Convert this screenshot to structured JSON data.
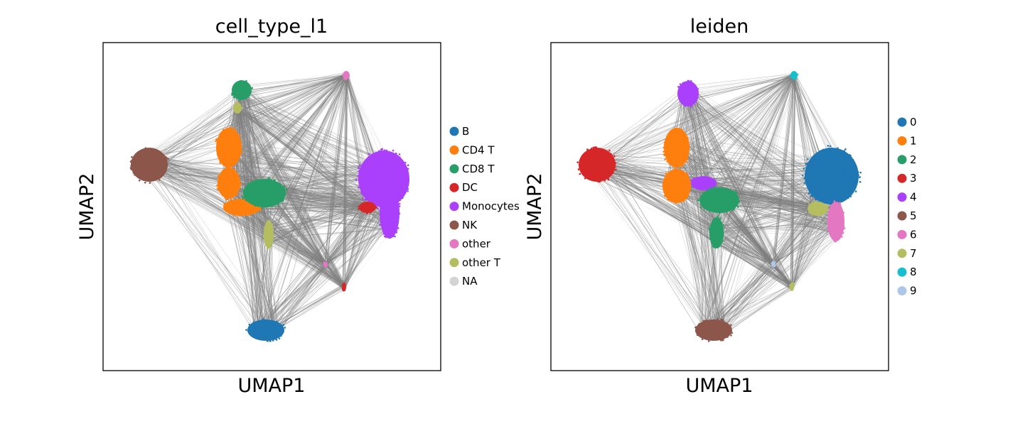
{
  "chart_data": [
    {
      "type": "scatter",
      "title": "cell_type_l1",
      "xlabel": "UMAP1",
      "ylabel": "UMAP2",
      "grid": false,
      "ticks": false,
      "legend_placement": "right",
      "series": [
        {
          "name": "B",
          "color": "#1f77b4"
        },
        {
          "name": "CD4 T",
          "color": "#ff7f0e"
        },
        {
          "name": "CD8 T",
          "color": "#279e68"
        },
        {
          "name": "DC",
          "color": "#d62728"
        },
        {
          "name": "Monocytes",
          "color": "#aa40fc"
        },
        {
          "name": "NK",
          "color": "#8c564b"
        },
        {
          "name": "other",
          "color": "#e377c2"
        },
        {
          "name": "other T",
          "color": "#b5bd61"
        },
        {
          "name": "NA",
          "color": "#d3d3d3"
        }
      ]
    },
    {
      "type": "scatter",
      "title": "leiden",
      "xlabel": "UMAP1",
      "ylabel": "UMAP2",
      "grid": false,
      "ticks": false,
      "legend_placement": "right",
      "series": [
        {
          "name": "0",
          "color": "#1f77b4"
        },
        {
          "name": "1",
          "color": "#ff7f0e"
        },
        {
          "name": "2",
          "color": "#279e68"
        },
        {
          "name": "3",
          "color": "#d62728"
        },
        {
          "name": "4",
          "color": "#aa40fc"
        },
        {
          "name": "5",
          "color": "#8c564b"
        },
        {
          "name": "6",
          "color": "#e377c2"
        },
        {
          "name": "7",
          "color": "#b5bd61"
        },
        {
          "name": "8",
          "color": "#17becf"
        },
        {
          "name": "9",
          "color": "#aec7e8"
        }
      ]
    }
  ]
}
